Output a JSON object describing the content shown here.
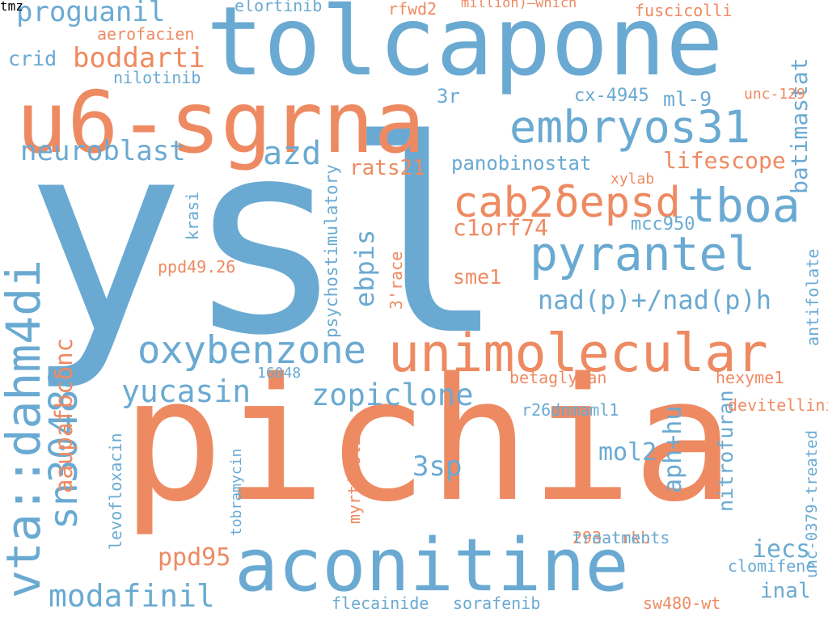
{
  "palette": {
    "blue": "#6aaad2",
    "orange": "#ee8a62"
  },
  "words": [
    {
      "id": "w01",
      "text": "ysl",
      "color": "blue"
    },
    {
      "id": "w02",
      "text": "pichia",
      "color": "orange"
    },
    {
      "id": "w03",
      "text": "tolcapone",
      "color": "blue"
    },
    {
      "id": "w04",
      "text": "u6-sgrna",
      "color": "orange"
    },
    {
      "id": "w05",
      "text": "aconitine",
      "color": "blue"
    },
    {
      "id": "w06",
      "text": "unimolecular",
      "color": "orange"
    },
    {
      "id": "w07",
      "text": "vta::dahm4di",
      "color": "blue"
    },
    {
      "id": "w08",
      "text": "pyrantel",
      "color": "blue"
    },
    {
      "id": "w09",
      "text": "embryos31",
      "color": "blue"
    },
    {
      "id": "w10",
      "text": "cab2δepsd",
      "color": "orange"
    },
    {
      "id": "w11",
      "text": "tboa",
      "color": "blue"
    },
    {
      "id": "w12",
      "text": "oxybenzone",
      "color": "blue"
    },
    {
      "id": "w13",
      "text": "sn30488",
      "color": "blue"
    },
    {
      "id": "w14",
      "text": "neuroblast",
      "color": "blue"
    },
    {
      "id": "w15",
      "text": "azd",
      "color": "blue"
    },
    {
      "id": "w16",
      "text": "proguanil",
      "color": "blue"
    },
    {
      "id": "w17",
      "text": "boddarti",
      "color": "orange"
    },
    {
      "id": "w18",
      "text": "yucasin",
      "color": "blue"
    },
    {
      "id": "w19",
      "text": "zopiclone",
      "color": "blue"
    },
    {
      "id": "w20",
      "text": "modafinil",
      "color": "blue"
    },
    {
      "id": "w21",
      "text": "nad(p)+/nad(p)h",
      "color": "blue"
    },
    {
      "id": "w22",
      "text": "batimastat",
      "color": "blue"
    },
    {
      "id": "w23",
      "text": "lifescope",
      "color": "orange"
    },
    {
      "id": "w24",
      "text": "panobinostat",
      "color": "blue"
    },
    {
      "id": "w25",
      "text": "rats21",
      "color": "orange"
    },
    {
      "id": "w26",
      "text": "c1orf74",
      "color": "orange"
    },
    {
      "id": "w27",
      "text": "ebpis",
      "color": "blue"
    },
    {
      "id": "w28",
      "text": "aaupafbcδnc",
      "color": "orange"
    },
    {
      "id": "w29",
      "text": "3sp",
      "color": "blue"
    },
    {
      "id": "w30",
      "text": "mol2",
      "color": "blue"
    },
    {
      "id": "w31",
      "text": "aph+hu",
      "color": "blue"
    },
    {
      "id": "w32",
      "text": "ppd95",
      "color": "orange"
    },
    {
      "id": "w33",
      "text": "iecs",
      "color": "blue"
    },
    {
      "id": "w34",
      "text": "sme1",
      "color": "orange"
    },
    {
      "id": "w35",
      "text": "ml-9",
      "color": "blue"
    },
    {
      "id": "w36",
      "text": "cx-4945",
      "color": "blue"
    },
    {
      "id": "w37",
      "text": "3r",
      "color": "blue"
    },
    {
      "id": "w38",
      "text": "crid",
      "color": "blue"
    },
    {
      "id": "w39",
      "text": "elortinib",
      "color": "blue"
    },
    {
      "id": "w40",
      "text": "rfwd2",
      "color": "orange"
    },
    {
      "id": "w41",
      "text": "fuscicolli",
      "color": "orange"
    },
    {
      "id": "w42",
      "text": "million)—which",
      "color": "orange"
    },
    {
      "id": "w43",
      "text": "aerofacien",
      "color": "orange"
    },
    {
      "id": "w44",
      "text": "nilotinib",
      "color": "blue"
    },
    {
      "id": "w45",
      "text": "betaglycan",
      "color": "orange"
    },
    {
      "id": "w46",
      "text": "nitrofuran",
      "color": "blue"
    },
    {
      "id": "w47",
      "text": "antifolate",
      "color": "blue"
    },
    {
      "id": "w48",
      "text": "unc-0379-treated",
      "color": "blue"
    },
    {
      "id": "w49",
      "text": "hexyme1",
      "color": "orange"
    },
    {
      "id": "w50",
      "text": "r26dnmaml1",
      "color": "blue"
    },
    {
      "id": "w51",
      "text": "psychostimulatory",
      "color": "blue"
    },
    {
      "id": "w52",
      "text": "3'race",
      "color": "orange"
    },
    {
      "id": "w53",
      "text": "myrtifolia",
      "color": "orange"
    },
    {
      "id": "w54",
      "text": "levofloxacin",
      "color": "blue"
    },
    {
      "id": "w55",
      "text": "tobramycin",
      "color": "blue"
    },
    {
      "id": "w56",
      "text": "clomifene",
      "color": "blue"
    },
    {
      "id": "w57",
      "text": "sorafenib",
      "color": "blue"
    },
    {
      "id": "w58",
      "text": "flecainide",
      "color": "blue"
    },
    {
      "id": "w59",
      "text": "sw480-wt",
      "color": "orange"
    },
    {
      "id": "w60",
      "text": "ppd49.26",
      "color": "orange"
    },
    {
      "id": "w61",
      "text": "293-trkb",
      "color": "orange"
    },
    {
      "id": "w62",
      "text": "treatments",
      "color": "blue"
    },
    {
      "id": "w63",
      "text": "inal",
      "color": "blue"
    },
    {
      "id": "w64",
      "text": "16048",
      "color": "blue"
    },
    {
      "id": "w65",
      "text": "devitellinise",
      "color": "orange"
    },
    {
      "id": "w66",
      "text": "mcc950",
      "color": "blue"
    },
    {
      "id": "w67",
      "text": "xylab",
      "color": "orange"
    },
    {
      "id": "w68",
      "text": "unc-129",
      "color": "orange"
    },
    {
      "id": "w69",
      "text": "krasi",
      "color": "blue"
    },
    {
      "id": "w70",
      "text": "tmz",
      "color": "blue"
    }
  ]
}
